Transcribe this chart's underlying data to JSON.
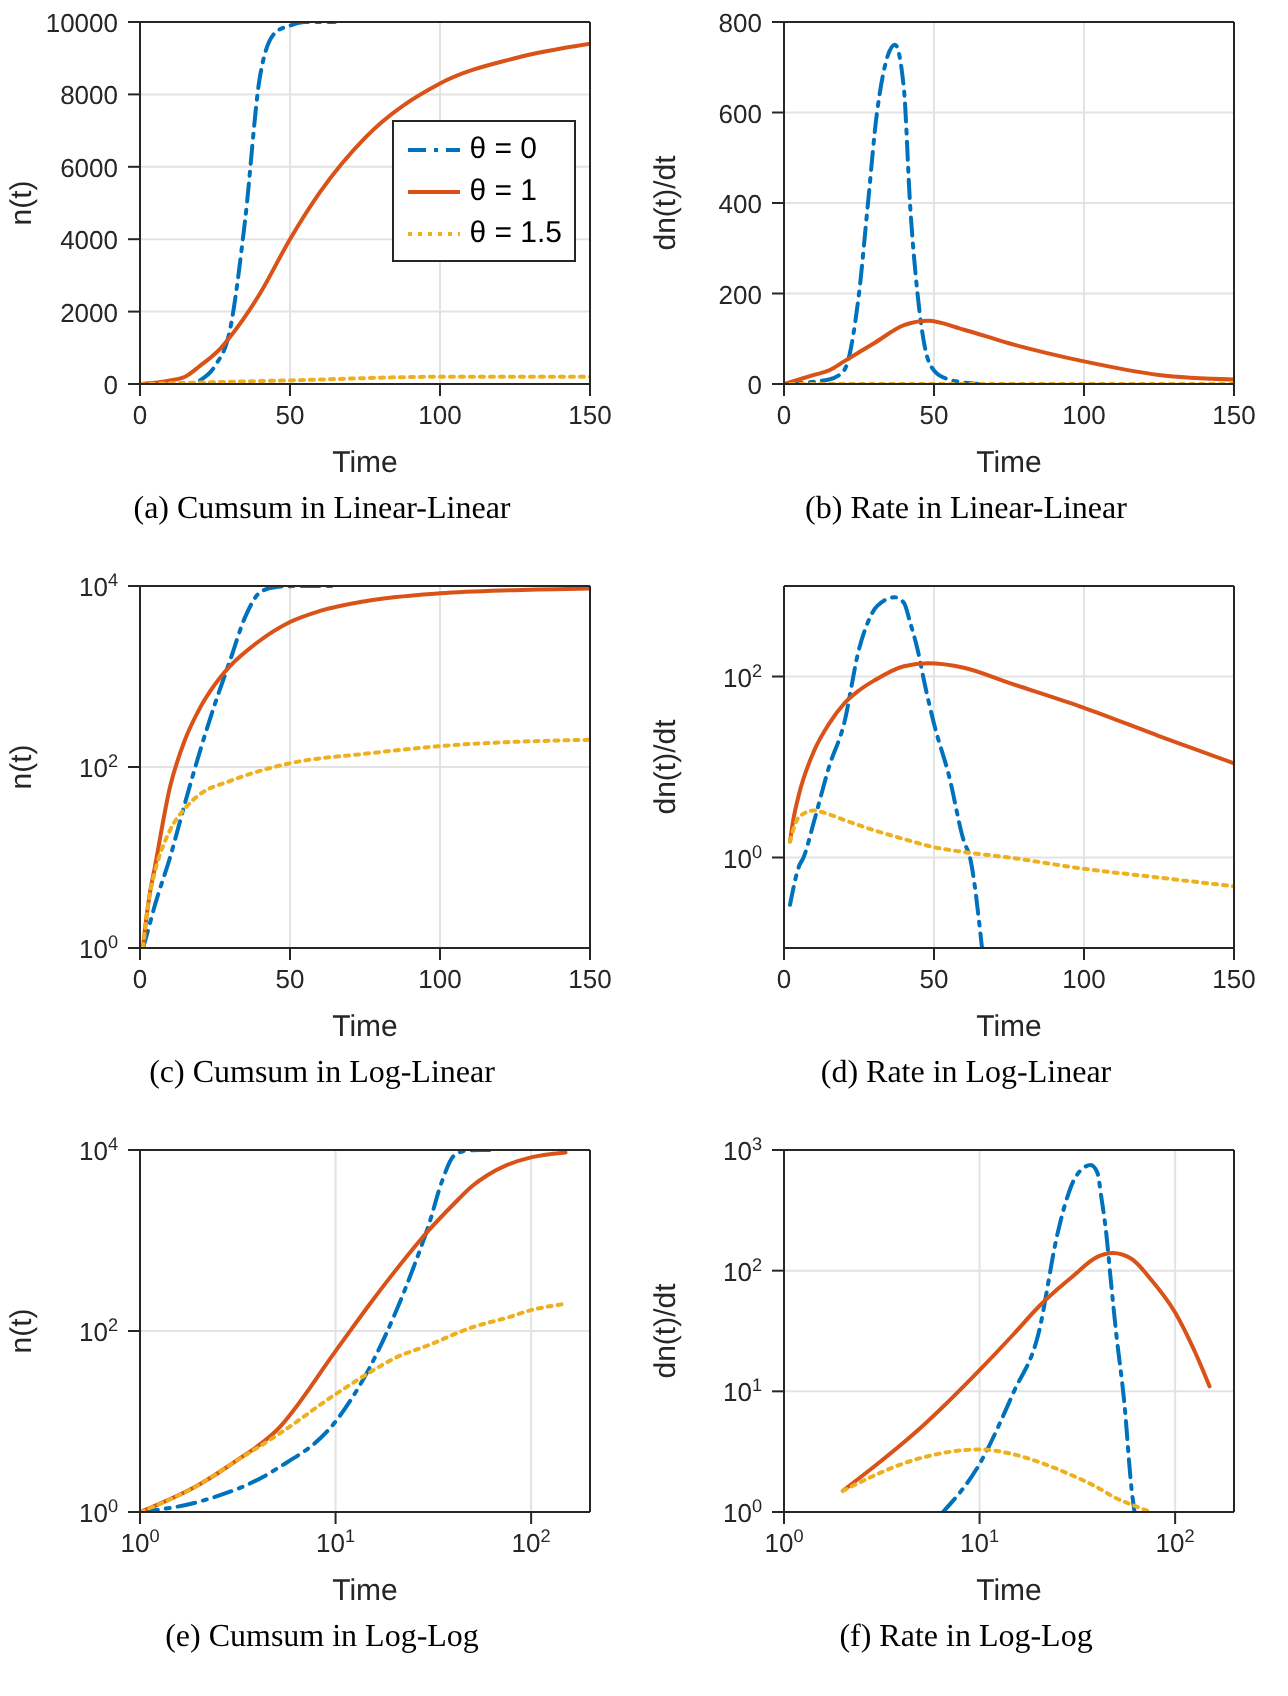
{
  "chart_data": [
    {
      "type": "line",
      "title": "(a) Cumsum in Linear-Linear",
      "xlabel": "Time",
      "ylabel": "n(t)",
      "xlim": [
        0,
        150
      ],
      "xticks": [
        0,
        50,
        100,
        150
      ],
      "ylim": [
        0,
        10000
      ],
      "yticks": [
        0,
        2000,
        4000,
        6000,
        8000,
        10000
      ],
      "grid": true,
      "legend": "right",
      "series": [
        {
          "name": "θ = 0",
          "color": "#0072bd",
          "line_style": "dashed",
          "x": [
            20,
            25,
            30,
            35,
            40,
            45,
            50,
            55,
            65
          ],
          "values": [
            100,
            500,
            1500,
            4500,
            8500,
            9700,
            9900,
            10000,
            10000
          ]
        },
        {
          "name": "θ = 1",
          "color": "#d95319",
          "line_style": "solid",
          "x": [
            0,
            10,
            15,
            20,
            27,
            30,
            40,
            50,
            60,
            75,
            100,
            125,
            150
          ],
          "values": [
            0,
            100,
            200,
            500,
            1000,
            1300,
            2500,
            4000,
            5300,
            6800,
            8300,
            9000,
            9400
          ]
        },
        {
          "name": "θ = 1.5",
          "color": "#edb120",
          "line_style": "dotted",
          "x": [
            0,
            50,
            100,
            150
          ],
          "values": [
            0,
            100,
            200,
            200
          ]
        }
      ]
    },
    {
      "type": "line",
      "title": "(b) Rate in Linear-Linear",
      "xlabel": "Time",
      "ylabel": "dn(t)/dt",
      "xlim": [
        0,
        150
      ],
      "xticks": [
        0,
        50,
        100,
        150
      ],
      "ylim": [
        0,
        800
      ],
      "yticks": [
        0,
        200,
        400,
        600,
        800
      ],
      "grid": true,
      "series": [
        {
          "color": "#0072bd",
          "line_style": "dashed",
          "x": [
            0,
            15,
            20,
            25,
            28,
            31,
            37,
            40,
            42,
            44.5,
            47,
            50,
            55,
            65
          ],
          "values": [
            0,
            10,
            30,
            200,
            400,
            600,
            750,
            650,
            400,
            200,
            80,
            30,
            10,
            0
          ]
        },
        {
          "color": "#d95319",
          "line_style": "solid",
          "x": [
            0,
            10,
            15,
            20,
            25,
            30,
            40,
            48,
            60,
            75,
            100,
            125,
            150
          ],
          "values": [
            0,
            20,
            30,
            50,
            70,
            90,
            130,
            140,
            120,
            90,
            50,
            20,
            10
          ]
        },
        {
          "color": "#edb120",
          "line_style": "dotted",
          "x": [
            2,
            75,
            150
          ],
          "values": [
            0,
            0,
            0
          ]
        }
      ]
    },
    {
      "type": "line",
      "title": "(c) Cumsum in Log-Linear",
      "xlabel": "Time",
      "ylabel": "n(t)",
      "log": "y",
      "xlim": [
        0,
        150
      ],
      "xticks": [
        0,
        50,
        100,
        150
      ],
      "ylim": [
        1,
        10000
      ],
      "yticks": [
        {
          "value": 1,
          "label": "10$^{0}$"
        },
        {
          "value": 100,
          "label": "10$^{2}$"
        },
        {
          "value": 10000,
          "label": "10$^{4}$"
        }
      ],
      "grid": true,
      "series": [
        {
          "color": "#0072bd",
          "line_style": "dashed",
          "x": [
            1,
            2,
            5,
            10,
            15,
            20,
            25,
            30,
            35,
            40,
            45,
            50,
            55,
            65
          ],
          "values": [
            1,
            1.3,
            3,
            10,
            40,
            150,
            500,
            1500,
            4500,
            8500,
            9700,
            9950,
            10000,
            10000
          ]
        },
        {
          "color": "#d95319",
          "line_style": "solid",
          "x": [
            1,
            2,
            3,
            5,
            10,
            15,
            20,
            27,
            30,
            40,
            50,
            60,
            75,
            100,
            125,
            150
          ],
          "values": [
            1,
            2,
            3.5,
            8,
            60,
            200,
            450,
            1000,
            1300,
            2500,
            4000,
            5300,
            6800,
            8300,
            9000,
            9400
          ]
        },
        {
          "color": "#edb120",
          "line_style": "dotted",
          "x": [
            1,
            2,
            3,
            5,
            10,
            15,
            20,
            30,
            50,
            75,
            100,
            150
          ],
          "values": [
            1,
            2,
            3.5,
            7,
            20,
            35,
            50,
            70,
            110,
            140,
            170,
            200
          ]
        }
      ]
    },
    {
      "type": "line",
      "title": "(d) Rate in Log-Linear",
      "xlabel": "Time",
      "ylabel": "dn(t)/dt",
      "log": "y",
      "xlim": [
        0,
        150
      ],
      "xticks": [
        0,
        50,
        100,
        150
      ],
      "ylim": [
        0.1,
        1000
      ],
      "yticks": [
        {
          "value": 1,
          "label": "10$^{0}$"
        },
        {
          "value": 100,
          "label": "10$^{2}$"
        }
      ],
      "grid": true,
      "series": [
        {
          "color": "#0072bd",
          "line_style": "dashed",
          "x": [
            2,
            5,
            6.5,
            10,
            15,
            20,
            25,
            28,
            31,
            37,
            40,
            42,
            44.5,
            47,
            50,
            55,
            60,
            62,
            66
          ],
          "values": [
            0.3,
            0.8,
            1,
            2.5,
            10,
            30,
            200,
            400,
            600,
            750,
            650,
            400,
            200,
            80,
            30,
            8,
            1.5,
            1,
            0.1
          ]
        },
        {
          "color": "#d95319",
          "line_style": "solid",
          "x": [
            2,
            3,
            5,
            10,
            15,
            20,
            25,
            30,
            40,
            48,
            60,
            75,
            100,
            125,
            150
          ],
          "values": [
            1.5,
            2.5,
            5,
            15,
            30,
            50,
            70,
            90,
            130,
            140,
            125,
            85,
            45,
            22,
            11
          ]
        },
        {
          "color": "#edb120",
          "line_style": "dotted",
          "x": [
            2,
            5,
            10,
            15,
            20,
            30,
            40,
            50,
            60,
            75,
            100,
            125,
            150
          ],
          "values": [
            1.5,
            2.8,
            3.3,
            3,
            2.6,
            2,
            1.6,
            1.3,
            1.15,
            1,
            0.75,
            0.6,
            0.48
          ]
        }
      ]
    },
    {
      "type": "line",
      "title": "(e) Cumsum in Log-Log",
      "xlabel": "Time",
      "ylabel": "n(t)",
      "log": "xy",
      "xlim": [
        1,
        200
      ],
      "xticks": [
        {
          "value": 1,
          "label": "10$^{0}$"
        },
        {
          "value": 10,
          "label": "10$^{1}$"
        },
        {
          "value": 100,
          "label": "10$^{2}$"
        }
      ],
      "ylim": [
        1,
        10000
      ],
      "yticks": [
        {
          "value": 1,
          "label": "10$^{0}$"
        },
        {
          "value": 100,
          "label": "10$^{2}$"
        },
        {
          "value": 10000,
          "label": "10$^{4}$"
        }
      ],
      "grid": true,
      "series": [
        {
          "color": "#0072bd",
          "line_style": "dashed",
          "x": [
            1,
            2,
            5,
            10,
            15,
            20,
            25,
            30,
            35,
            40,
            45,
            50,
            55,
            65
          ],
          "values": [
            1,
            1.3,
            3,
            10,
            40,
            150,
            500,
            1500,
            4500,
            8500,
            9700,
            9950,
            10000,
            10000
          ]
        },
        {
          "color": "#d95319",
          "line_style": "solid",
          "x": [
            1,
            2,
            3,
            5,
            10,
            15,
            20,
            27,
            30,
            40,
            50,
            60,
            75,
            100,
            125,
            150
          ],
          "values": [
            1,
            2,
            3.5,
            8,
            60,
            200,
            450,
            1000,
            1300,
            2500,
            4000,
            5300,
            6800,
            8300,
            9000,
            9400
          ]
        },
        {
          "color": "#edb120",
          "line_style": "dotted",
          "x": [
            1,
            2,
            3,
            5,
            10,
            15,
            20,
            30,
            50,
            75,
            100,
            150
          ],
          "values": [
            1,
            2,
            3.5,
            7,
            20,
            35,
            50,
            70,
            110,
            140,
            170,
            200
          ]
        }
      ]
    },
    {
      "type": "line",
      "title": "(f) Rate in Log-Log",
      "xlabel": "Time",
      "ylabel": "dn(t)/dt",
      "log": "xy",
      "xlim": [
        1,
        200
      ],
      "xticks": [
        {
          "value": 1,
          "label": "10$^{0}$"
        },
        {
          "value": 10,
          "label": "10$^{1}$"
        },
        {
          "value": 100,
          "label": "10$^{2}$"
        }
      ],
      "ylim": [
        1,
        1000
      ],
      "yticks": [
        {
          "value": 1,
          "label": "10$^{0}$"
        },
        {
          "value": 10,
          "label": "10$^{1}$"
        },
        {
          "value": 100,
          "label": "10$^{2}$"
        },
        {
          "value": 1000,
          "label": "10$^{3}$"
        }
      ],
      "grid": true,
      "series": [
        {
          "color": "#0072bd",
          "line_style": "dashed",
          "x": [
            6.5,
            10,
            15,
            20,
            25,
            28,
            31,
            37,
            40,
            42,
            44.5,
            47,
            50,
            55,
            60,
            62
          ],
          "values": [
            1,
            2.5,
            10,
            30,
            200,
            400,
            600,
            750,
            650,
            400,
            200,
            80,
            30,
            8,
            1.5,
            1
          ]
        },
        {
          "color": "#d95319",
          "line_style": "solid",
          "x": [
            2,
            3,
            5,
            10,
            15,
            20,
            25,
            30,
            40,
            48,
            60,
            75,
            100,
            125,
            150
          ],
          "values": [
            1.5,
            2.5,
            5,
            15,
            30,
            50,
            70,
            90,
            130,
            140,
            125,
            85,
            45,
            22,
            11
          ]
        },
        {
          "color": "#edb120",
          "line_style": "dotted",
          "x": [
            2,
            5,
            10,
            15,
            20,
            30,
            40,
            50,
            60,
            75
          ],
          "values": [
            1.5,
            2.8,
            3.3,
            3,
            2.6,
            2,
            1.6,
            1.3,
            1.15,
            1
          ]
        }
      ]
    }
  ]
}
